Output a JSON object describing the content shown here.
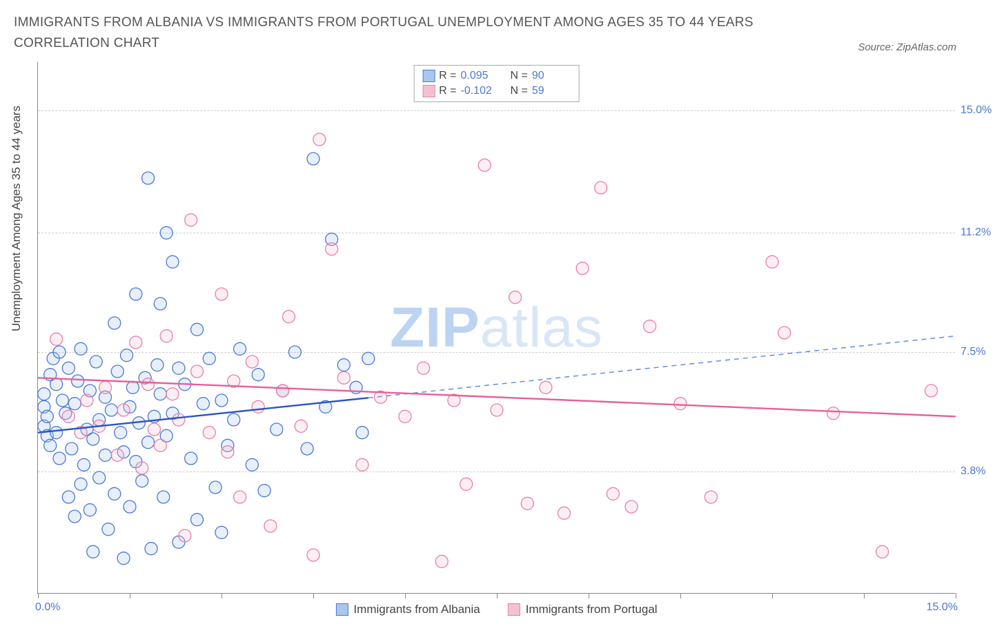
{
  "title": "IMMIGRANTS FROM ALBANIA VS IMMIGRANTS FROM PORTUGAL UNEMPLOYMENT AMONG AGES 35 TO 44 YEARS CORRELATION CHART",
  "source": "Source: ZipAtlas.com",
  "chart": {
    "type": "scatter",
    "ylabel": "Unemployment Among Ages 35 to 44 years",
    "xlim": [
      0,
      15
    ],
    "ylim": [
      0,
      16.5
    ],
    "x_min_label": "0.0%",
    "x_max_label": "15.0%",
    "x_ticks": [
      0,
      1.5,
      3.0,
      4.5,
      6.0,
      7.5,
      9.0,
      10.5,
      12.0,
      13.5,
      15.0
    ],
    "y_grid": [
      3.8,
      7.5,
      11.2,
      15.0
    ],
    "y_grid_labels": [
      "3.8%",
      "7.5%",
      "11.2%",
      "15.0%"
    ],
    "text_color": "#4a78d6",
    "grid_color": "#cccccc",
    "background_color": "#ffffff",
    "marker_radius": 9,
    "marker_fill_opacity": 0.28,
    "marker_stroke_width": 1.3,
    "watermark": "ZIPatlas",
    "series": [
      {
        "name": "Immigrants from Albania",
        "fill": "#a9c6ee",
        "stroke": "#4a78d6",
        "line_color": "#2b55c4",
        "dash_color": "#6a92e2",
        "R": "0.095",
        "N": "90",
        "trend": {
          "y_at_x0": 5.0,
          "y_at_x15": 8.0,
          "solid_end_x": 5.4
        },
        "points": [
          [
            0.1,
            5.2
          ],
          [
            0.1,
            5.8
          ],
          [
            0.15,
            4.9
          ],
          [
            0.1,
            6.2
          ],
          [
            0.15,
            5.5
          ],
          [
            0.2,
            6.8
          ],
          [
            0.2,
            4.6
          ],
          [
            0.25,
            7.3
          ],
          [
            0.3,
            5.0
          ],
          [
            0.3,
            6.5
          ],
          [
            0.35,
            7.5
          ],
          [
            0.35,
            4.2
          ],
          [
            0.4,
            6.0
          ],
          [
            0.45,
            5.6
          ],
          [
            0.5,
            3.0
          ],
          [
            0.5,
            7.0
          ],
          [
            0.55,
            4.5
          ],
          [
            0.6,
            2.4
          ],
          [
            0.6,
            5.9
          ],
          [
            0.65,
            6.6
          ],
          [
            0.7,
            7.6
          ],
          [
            0.7,
            3.4
          ],
          [
            0.75,
            4.0
          ],
          [
            0.8,
            5.1
          ],
          [
            0.85,
            2.6
          ],
          [
            0.85,
            6.3
          ],
          [
            0.9,
            4.8
          ],
          [
            0.9,
            1.3
          ],
          [
            0.95,
            7.2
          ],
          [
            1.0,
            5.4
          ],
          [
            1.0,
            3.6
          ],
          [
            1.1,
            6.1
          ],
          [
            1.1,
            4.3
          ],
          [
            1.15,
            2.0
          ],
          [
            1.2,
            5.7
          ],
          [
            1.25,
            8.4
          ],
          [
            1.25,
            3.1
          ],
          [
            1.3,
            6.9
          ],
          [
            1.35,
            5.0
          ],
          [
            1.4,
            4.4
          ],
          [
            1.4,
            1.1
          ],
          [
            1.45,
            7.4
          ],
          [
            1.5,
            5.8
          ],
          [
            1.5,
            2.7
          ],
          [
            1.55,
            6.4
          ],
          [
            1.6,
            4.1
          ],
          [
            1.6,
            9.3
          ],
          [
            1.65,
            5.3
          ],
          [
            1.7,
            3.5
          ],
          [
            1.75,
            6.7
          ],
          [
            1.8,
            12.9
          ],
          [
            1.8,
            4.7
          ],
          [
            1.85,
            1.4
          ],
          [
            1.9,
            5.5
          ],
          [
            1.95,
            7.1
          ],
          [
            2.0,
            9.0
          ],
          [
            2.0,
            6.2
          ],
          [
            2.05,
            3.0
          ],
          [
            2.1,
            4.9
          ],
          [
            2.1,
            11.2
          ],
          [
            2.2,
            10.3
          ],
          [
            2.2,
            5.6
          ],
          [
            2.3,
            7.0
          ],
          [
            2.3,
            1.6
          ],
          [
            2.4,
            6.5
          ],
          [
            2.5,
            4.2
          ],
          [
            2.6,
            8.2
          ],
          [
            2.6,
            2.3
          ],
          [
            2.7,
            5.9
          ],
          [
            2.8,
            7.3
          ],
          [
            2.9,
            3.3
          ],
          [
            3.0,
            6.0
          ],
          [
            3.0,
            1.9
          ],
          [
            3.1,
            4.6
          ],
          [
            3.2,
            5.4
          ],
          [
            3.3,
            7.6
          ],
          [
            3.5,
            4.0
          ],
          [
            3.6,
            6.8
          ],
          [
            3.7,
            3.2
          ],
          [
            3.9,
            5.1
          ],
          [
            4.0,
            6.3
          ],
          [
            4.2,
            7.5
          ],
          [
            4.4,
            4.5
          ],
          [
            4.5,
            13.5
          ],
          [
            4.7,
            5.8
          ],
          [
            4.8,
            11.0
          ],
          [
            5.0,
            7.1
          ],
          [
            5.2,
            6.4
          ],
          [
            5.3,
            5.0
          ],
          [
            5.4,
            7.3
          ]
        ]
      },
      {
        "name": "Immigrants from Portugal",
        "fill": "#f4c1d3",
        "stroke": "#e87fa8",
        "line_color": "#e85f98",
        "R": "-0.102",
        "N": "59",
        "trend": {
          "y_at_x0": 6.7,
          "y_at_x15": 5.5,
          "solid_end_x": 15
        },
        "points": [
          [
            0.3,
            7.9
          ],
          [
            0.5,
            5.5
          ],
          [
            0.7,
            5.0
          ],
          [
            0.8,
            6.0
          ],
          [
            1.0,
            5.2
          ],
          [
            1.1,
            6.4
          ],
          [
            1.3,
            4.3
          ],
          [
            1.4,
            5.7
          ],
          [
            1.6,
            7.8
          ],
          [
            1.7,
            3.9
          ],
          [
            1.8,
            6.5
          ],
          [
            1.9,
            5.1
          ],
          [
            2.0,
            4.6
          ],
          [
            2.1,
            8.0
          ],
          [
            2.2,
            6.2
          ],
          [
            2.3,
            5.4
          ],
          [
            2.4,
            1.8
          ],
          [
            2.5,
            11.6
          ],
          [
            2.6,
            6.9
          ],
          [
            2.8,
            5.0
          ],
          [
            3.0,
            9.3
          ],
          [
            3.1,
            4.4
          ],
          [
            3.2,
            6.6
          ],
          [
            3.3,
            3.0
          ],
          [
            3.5,
            7.2
          ],
          [
            3.6,
            5.8
          ],
          [
            3.8,
            2.1
          ],
          [
            4.0,
            6.3
          ],
          [
            4.1,
            8.6
          ],
          [
            4.3,
            5.2
          ],
          [
            4.5,
            1.2
          ],
          [
            4.6,
            14.1
          ],
          [
            4.8,
            10.7
          ],
          [
            5.0,
            6.7
          ],
          [
            5.3,
            4.0
          ],
          [
            5.6,
            6.1
          ],
          [
            6.0,
            5.5
          ],
          [
            6.3,
            7.0
          ],
          [
            6.6,
            1.0
          ],
          [
            6.8,
            6.0
          ],
          [
            7.0,
            3.4
          ],
          [
            7.3,
            13.3
          ],
          [
            7.5,
            5.7
          ],
          [
            7.8,
            9.2
          ],
          [
            8.0,
            2.8
          ],
          [
            8.3,
            6.4
          ],
          [
            8.6,
            2.5
          ],
          [
            8.9,
            10.1
          ],
          [
            9.2,
            12.6
          ],
          [
            9.4,
            3.1
          ],
          [
            9.7,
            2.7
          ],
          [
            10.0,
            8.3
          ],
          [
            10.5,
            5.9
          ],
          [
            11.0,
            3.0
          ],
          [
            12.0,
            10.3
          ],
          [
            12.2,
            8.1
          ],
          [
            13.0,
            5.6
          ],
          [
            13.8,
            1.3
          ],
          [
            14.6,
            6.3
          ]
        ]
      }
    ],
    "legend_bottom": [
      {
        "label": "Immigrants from Albania",
        "fill": "#a9c6ee",
        "stroke": "#4a78d6"
      },
      {
        "label": "Immigrants from Portugal",
        "fill": "#f4c1d3",
        "stroke": "#e87fa8"
      }
    ]
  }
}
